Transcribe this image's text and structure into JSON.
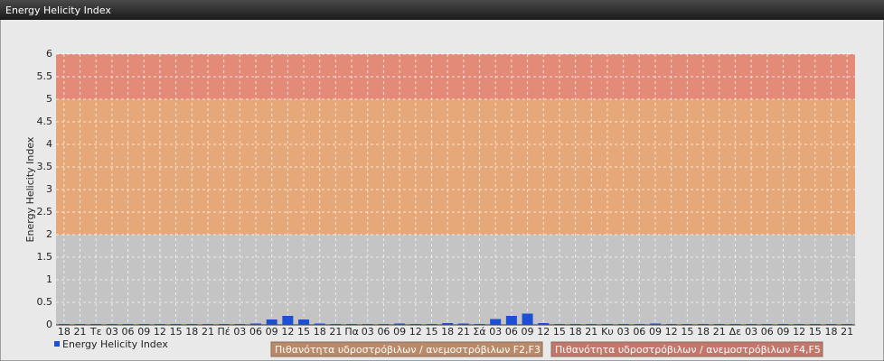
{
  "chart_data": {
    "type": "bar",
    "title": "Energy Helicity Index",
    "ylabel": "Energy Helicity Index",
    "categories": [
      "18",
      "21",
      "Τε",
      "03",
      "06",
      "09",
      "12",
      "15",
      "18",
      "21",
      "Πέ",
      "03",
      "06",
      "09",
      "12",
      "15",
      "18",
      "21",
      "Πα",
      "03",
      "06",
      "09",
      "12",
      "15",
      "18",
      "21",
      "Σά",
      "03",
      "06",
      "09",
      "12",
      "15",
      "18",
      "21",
      "Κυ",
      "03",
      "06",
      "09",
      "12",
      "15",
      "18",
      "21",
      "Δε",
      "03",
      "06",
      "09",
      "12",
      "15",
      "18",
      "21"
    ],
    "series": [
      {
        "name": "Energy Helicity Index",
        "color": "#1d4fd6",
        "values": [
          0.02,
          0.02,
          0.02,
          0.02,
          0.02,
          0.02,
          0.02,
          0.02,
          0.02,
          0.02,
          0.02,
          0.02,
          0.03,
          0.12,
          0.2,
          0.12,
          0.03,
          0.02,
          0.02,
          0.02,
          0.02,
          0.03,
          0.02,
          0.02,
          0.04,
          0.03,
          0.02,
          0.13,
          0.2,
          0.25,
          0.04,
          0.02,
          0.02,
          0.02,
          0.02,
          0.02,
          0.02,
          0.03,
          0.02,
          0.02,
          0.02,
          0.02,
          0.02,
          0.02,
          0.02,
          0.02,
          0.02,
          0.02,
          0.02,
          0.02
        ]
      }
    ],
    "ylim": [
      0,
      6
    ],
    "yticks": [
      0,
      0.5,
      1,
      1.5,
      2,
      2.5,
      3,
      3.5,
      4,
      4.5,
      5,
      5.5,
      6
    ],
    "grid": true,
    "bands": [
      {
        "from": 0,
        "to": 2,
        "color": "#c4c4c4"
      },
      {
        "from": 2,
        "to": 5,
        "color": "#e6a878",
        "label": "Πιθανότητα υδροστρόβιλων / ανεμοστρόβιλων F2,F3",
        "legend_color": "#b88a6a"
      },
      {
        "from": 5,
        "to": 6,
        "color": "#e38b78",
        "label": "Πιθανότητα υδροστρόβιλων / ανεμοστρόβιλων F4,F5",
        "legend_color": "#c1776c"
      }
    ]
  }
}
